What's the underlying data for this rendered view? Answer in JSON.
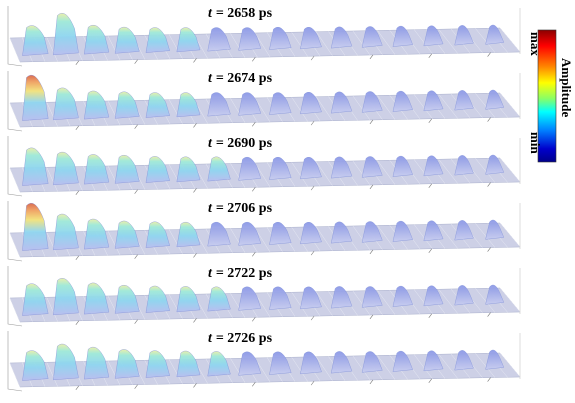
{
  "figure": {
    "panels": [
      {
        "t_symbol": "t",
        "t_value": "= 2658 ps",
        "packets": [
          0.55,
          0.85,
          0.52,
          0.45,
          0.42,
          0.4,
          0.38,
          0.36,
          0.35,
          0.33,
          0.32,
          0.31,
          0.3,
          0.29,
          0.28,
          0.27
        ]
      },
      {
        "t_symbol": "t",
        "t_value": "= 2674 ps",
        "packets": [
          0.95,
          0.6,
          0.5,
          0.46,
          0.42,
          0.4,
          0.38,
          0.36,
          0.34,
          0.33,
          0.32,
          0.31,
          0.3,
          0.29,
          0.28,
          0.27
        ]
      },
      {
        "t_symbol": "t",
        "t_value": "= 2690 ps",
        "packets": [
          0.75,
          0.62,
          0.54,
          0.5,
          0.45,
          0.42,
          0.4,
          0.37,
          0.35,
          0.33,
          0.32,
          0.31,
          0.3,
          0.29,
          0.28,
          0.27
        ]
      },
      {
        "t_symbol": "t",
        "t_value": "= 2706 ps",
        "packets": [
          1.0,
          0.7,
          0.55,
          0.48,
          0.44,
          0.41,
          0.39,
          0.37,
          0.35,
          0.33,
          0.32,
          0.31,
          0.3,
          0.29,
          0.28,
          0.27
        ]
      },
      {
        "t_symbol": "t",
        "t_value": "= 2722 ps",
        "packets": [
          0.6,
          0.72,
          0.58,
          0.5,
          0.46,
          0.43,
          0.4,
          0.38,
          0.36,
          0.34,
          0.33,
          0.31,
          0.3,
          0.29,
          0.28,
          0.27
        ]
      },
      {
        "t_symbol": "t",
        "t_value": "= 2726 ps",
        "packets": [
          0.55,
          0.7,
          0.6,
          0.52,
          0.47,
          0.44,
          0.41,
          0.38,
          0.36,
          0.34,
          0.33,
          0.31,
          0.3,
          0.29,
          0.28,
          0.27
        ]
      }
    ],
    "colorbar": {
      "title": "Amplitude",
      "max_label": "max",
      "min_label": "min",
      "colors": [
        "#8b0000",
        "#ff0000",
        "#ff8800",
        "#ffff00",
        "#00ff88",
        "#00ffff",
        "#0080ff",
        "#0000cc",
        "#00008b"
      ]
    },
    "surface_colors": {
      "low": "#c8cdf0",
      "mid": "#8fd6f0",
      "high": "#f2e27a",
      "peak": "#d9664a",
      "grid": "#bfc3d6"
    }
  }
}
